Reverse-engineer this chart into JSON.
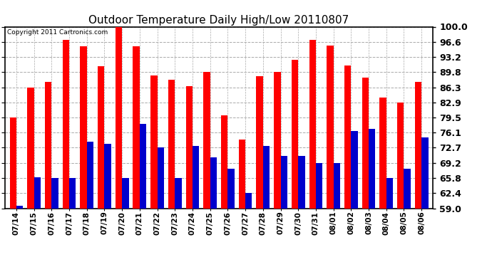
{
  "title": "Outdoor Temperature Daily High/Low 20110807",
  "copyright_text": "Copyright 2011 Cartronics.com",
  "dates": [
    "07/14",
    "07/15",
    "07/16",
    "07/17",
    "07/18",
    "07/19",
    "07/20",
    "07/21",
    "07/22",
    "07/23",
    "07/24",
    "07/25",
    "07/26",
    "07/27",
    "07/28",
    "07/29",
    "07/30",
    "07/31",
    "08/01",
    "08/02",
    "08/03",
    "08/04",
    "08/05",
    "08/06"
  ],
  "highs": [
    79.5,
    86.3,
    87.5,
    97.0,
    95.5,
    91.0,
    100.0,
    95.5,
    89.0,
    88.0,
    86.5,
    89.8,
    80.0,
    74.5,
    88.8,
    89.8,
    92.5,
    97.0,
    95.7,
    91.2,
    88.5,
    84.0,
    82.8,
    87.5
  ],
  "lows": [
    59.5,
    66.0,
    65.8,
    65.8,
    74.0,
    73.5,
    65.8,
    78.0,
    72.8,
    65.8,
    73.0,
    70.5,
    68.0,
    62.5,
    73.0,
    70.8,
    70.8,
    69.2,
    69.2,
    76.5,
    77.0,
    65.8,
    68.0,
    75.0
  ],
  "high_color": "#FF0000",
  "low_color": "#0000CC",
  "bg_color": "#FFFFFF",
  "grid_color": "#AAAAAA",
  "ymin": 59.0,
  "ymax": 100.0,
  "yticks": [
    59.0,
    62.4,
    65.8,
    69.2,
    72.7,
    76.1,
    79.5,
    82.9,
    86.3,
    89.8,
    93.2,
    96.6,
    100.0
  ],
  "bar_width": 0.38,
  "title_fontsize": 11,
  "tick_fontsize": 7.5,
  "copyright_fontsize": 6.5,
  "ytick_fontsize": 9
}
